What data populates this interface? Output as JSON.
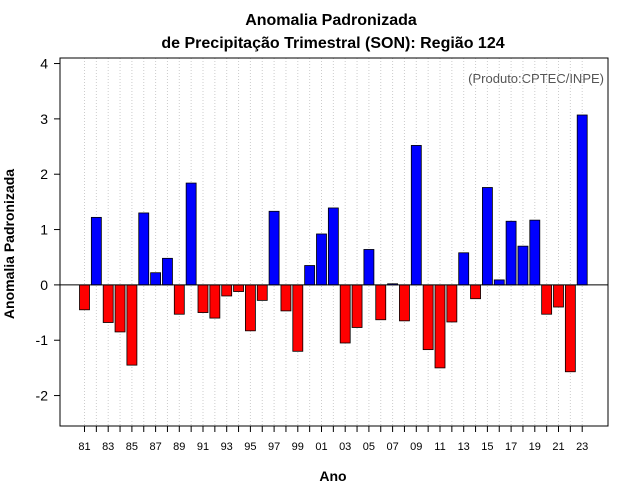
{
  "chart_data": {
    "type": "bar",
    "title_line1": "Anomalia Padronizada",
    "title_line2": "de Precipitação Trimestral (SON): Região 124",
    "xlabel": "Ano",
    "ylabel": "Anomalia Padronizada",
    "credit": "(Produto:CPTEC/INPE)",
    "ylim": [
      -2.55,
      4.1
    ],
    "yticks": [
      -2,
      -1,
      0,
      1,
      2,
      3,
      4
    ],
    "ytick_labels": [
      "-2",
      "-1",
      "0",
      "1",
      "2",
      "3",
      "4"
    ],
    "grid": true,
    "colors": {
      "positive": "#0000ff",
      "negative": "#ff0000",
      "frame": "#000000",
      "grid": "#cccccc"
    },
    "categories": [
      "81",
      "82",
      "83",
      "84",
      "85",
      "86",
      "87",
      "88",
      "89",
      "90",
      "91",
      "92",
      "93",
      "94",
      "95",
      "96",
      "97",
      "98",
      "99",
      "00",
      "01",
      "02",
      "03",
      "04",
      "05",
      "06",
      "07",
      "08",
      "09",
      "10",
      "11",
      "12",
      "13",
      "14",
      "15",
      "16",
      "17",
      "18",
      "19",
      "20",
      "21",
      "22",
      "23"
    ],
    "xtick_labels": [
      "81",
      "83",
      "85",
      "87",
      "89",
      "91",
      "93",
      "95",
      "97",
      "99",
      "01",
      "03",
      "05",
      "07",
      "09",
      "11",
      "13",
      "15",
      "17",
      "19",
      "21",
      "23"
    ],
    "values": [
      -0.45,
      1.22,
      -0.68,
      -0.85,
      -1.45,
      1.3,
      0.22,
      0.48,
      -0.53,
      1.84,
      -0.5,
      -0.6,
      -0.2,
      -0.12,
      -0.83,
      -0.28,
      1.33,
      -0.47,
      -1.2,
      0.35,
      0.92,
      1.39,
      -1.05,
      -0.77,
      0.64,
      -0.63,
      0.02,
      -0.65,
      2.52,
      -1.17,
      -1.5,
      -0.67,
      0.58,
      -0.25,
      1.76,
      0.09,
      1.15,
      0.7,
      1.17,
      -0.53,
      -0.4,
      -1.57,
      3.07
    ]
  }
}
